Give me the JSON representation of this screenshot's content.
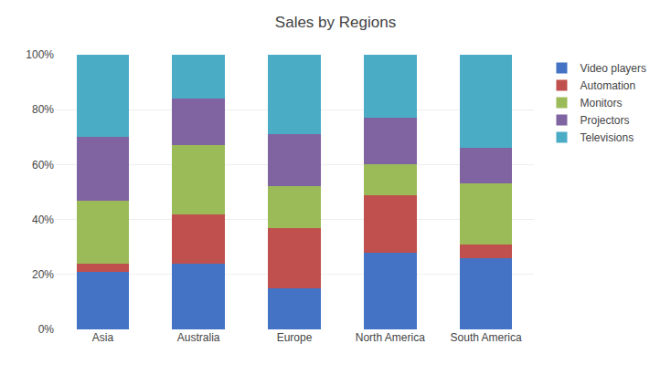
{
  "chart_data": {
    "type": "bar",
    "stacked": true,
    "title": "Sales by Regions",
    "categories": [
      "Asia",
      "Australia",
      "Europe",
      "North America",
      "South America"
    ],
    "series": [
      {
        "name": "Video players",
        "color": "#4472C4",
        "values": [
          0.21,
          0.24,
          0.15,
          0.28,
          0.26
        ]
      },
      {
        "name": "Automation",
        "color": "#C0504D",
        "values": [
          0.03,
          0.18,
          0.22,
          0.21,
          0.05
        ]
      },
      {
        "name": "Monitors",
        "color": "#9BBB59",
        "values": [
          0.23,
          0.25,
          0.15,
          0.11,
          0.22
        ]
      },
      {
        "name": "Projectors",
        "color": "#8064A2",
        "values": [
          0.23,
          0.17,
          0.19,
          0.17,
          0.13
        ]
      },
      {
        "name": "Televisions",
        "color": "#4BACC6",
        "values": [
          0.3,
          0.16,
          0.29,
          0.23,
          0.34
        ]
      }
    ],
    "ylim": [
      0,
      1.0
    ],
    "yticks": [
      {
        "value": 0,
        "label": "0%"
      },
      {
        "value": 0.2,
        "label": "20%"
      },
      {
        "value": 0.4,
        "label": "40%"
      },
      {
        "value": 0.6,
        "label": "60%"
      },
      {
        "value": 0.8,
        "label": "80%"
      },
      {
        "value": 1.0,
        "label": "100%"
      }
    ],
    "grid": true,
    "legend": "right"
  }
}
